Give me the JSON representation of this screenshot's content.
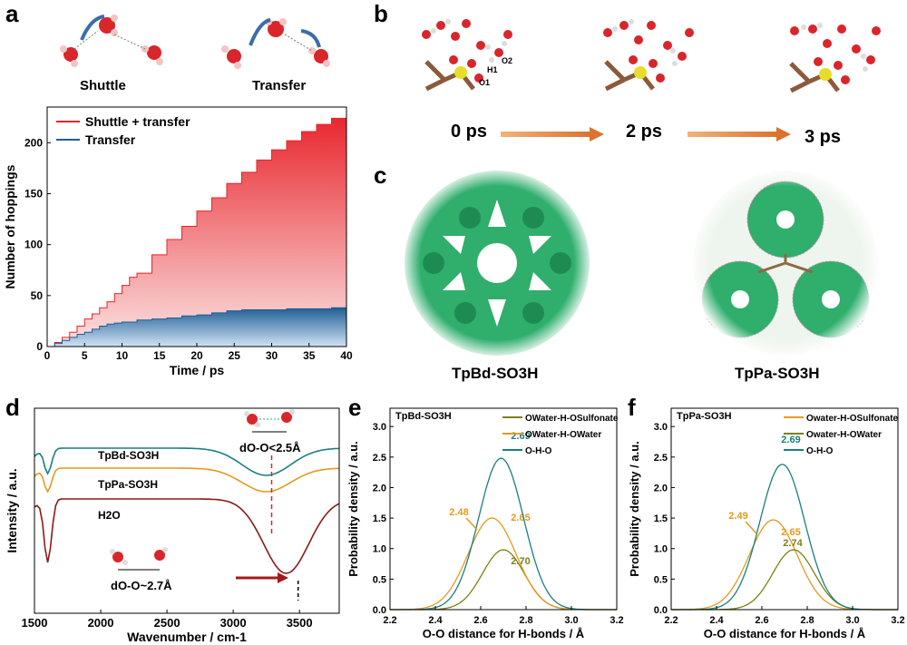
{
  "panels": {
    "a": {
      "label": "a",
      "schemes": [
        "Shuttle",
        "Transfer"
      ],
      "chart_data": {
        "type": "area",
        "xlabel": "Time / ps",
        "ylabel": "Number of hoppings",
        "xlim": [
          0,
          40
        ],
        "ylim": [
          0,
          235
        ],
        "xticks": [
          "0",
          "5",
          "10",
          "15",
          "20",
          "25",
          "30",
          "35",
          "40"
        ],
        "yticks": [
          "0",
          "50",
          "100",
          "150",
          "200"
        ],
        "x": [
          0,
          1,
          2,
          3,
          4,
          5,
          6,
          7,
          8,
          9,
          10,
          11,
          12,
          14,
          16,
          18,
          20,
          22,
          24,
          26,
          28,
          30,
          32,
          34,
          36,
          38,
          40
        ],
        "series": [
          {
            "name": "Shuttle + transfer",
            "color": "#e8242b",
            "values": [
              0,
              4,
              9,
              14,
              20,
              27,
              32,
              38,
              44,
              52,
              60,
              68,
              72,
              90,
              105,
              118,
              133,
              146,
              160,
              171,
              183,
              193,
              202,
              211,
              218,
              224,
              228
            ]
          },
          {
            "name": "Transfer",
            "color": "#1f5e94",
            "values": [
              0,
              3,
              6,
              9,
              12,
              14,
              17,
              20,
              22,
              23,
              24,
              24,
              26,
              27,
              28,
              30,
              31,
              33,
              35,
              36,
              36,
              36,
              37,
              37,
              37,
              38,
              38
            ]
          }
        ],
        "legend": "top-left"
      }
    },
    "b": {
      "label": "b",
      "times": [
        "0 ps",
        "2 ps",
        "3 ps"
      ],
      "atom_labels": [
        "H1",
        "O2",
        "O1"
      ]
    },
    "c": {
      "label": "c",
      "names": [
        "TpBd-SO3H",
        "TpPa-SO3H"
      ]
    },
    "d": {
      "label": "d",
      "chart_data": {
        "type": "line",
        "xlabel": "Wavenumber / cm-1",
        "ylabel": "Intensity / a.u.",
        "xlim": [
          1500,
          3800
        ],
        "xticks": [
          "1500",
          "2000",
          "2500",
          "3000",
          "3500"
        ],
        "series": [
          {
            "name": "TpBd-SO3H",
            "color": "#1a7f7f"
          },
          {
            "name": "TpPa-SO3H",
            "color": "#e39a1f"
          },
          {
            "name": "H2O",
            "color": "#8b1a1a"
          }
        ],
        "annotations": [
          "dO-O<2.5Å",
          "dO-O~2.7Å"
        ]
      }
    },
    "e": {
      "label": "e",
      "chart_data": {
        "type": "line",
        "title": "TpBd-SO3H",
        "xlabel": "O-O distance for H-bonds /  Å",
        "ylabel": "Probability density / a.u.",
        "xlim": [
          2.2,
          3.2
        ],
        "ylim": [
          0,
          3.3
        ],
        "xticks": [
          "2.2",
          "2.4",
          "2.6",
          "2.8",
          "3.0",
          "3.2"
        ],
        "yticks": [
          "0.0",
          "0.5",
          "1.0",
          "1.5",
          "2.0",
          "2.5",
          "3.0"
        ],
        "series": [
          {
            "name": "OWater-H-OSulfonate",
            "color": "#7f7f14",
            "peak_x": 2.7,
            "peak_y": 0.98,
            "peak_label": "2.70"
          },
          {
            "name": "OWater-H-OWater",
            "color": "#e39a1f",
            "peak_x": 2.65,
            "peak_y": 1.5,
            "peak_label": "2.65"
          },
          {
            "name": "O-H-O",
            "color": "#1a7f7f",
            "peak_x": 2.69,
            "peak_y": 2.48,
            "peak_label": "2.69"
          }
        ],
        "extra_label": "2.48"
      }
    },
    "f": {
      "label": "f",
      "chart_data": {
        "type": "line",
        "title": "TpPa-SO3H",
        "xlabel": "O-O distance for H-bonds /  Å",
        "ylabel": "Probability density / a.u.",
        "xlim": [
          2.2,
          3.2
        ],
        "ylim": [
          0,
          3.3
        ],
        "xticks": [
          "2.2",
          "2.4",
          "2.6",
          "2.8",
          "3.0",
          "3.2"
        ],
        "yticks": [
          "0.0",
          "0.5",
          "1.0",
          "1.5",
          "2.0",
          "2.5",
          "3.0"
        ],
        "series": [
          {
            "name": "Owater-H-OSulfonate",
            "color": "#e39a1f",
            "peak_x": 2.65,
            "peak_y": 1.47,
            "peak_label": "2.65"
          },
          {
            "name": "Owater-H-OWater",
            "color": "#7f7f14",
            "peak_x": 2.74,
            "peak_y": 0.98,
            "peak_label": "2.74"
          },
          {
            "name": "O-H-O",
            "color": "#1a7f7f",
            "peak_x": 2.69,
            "peak_y": 2.38,
            "peak_label": "2.69"
          }
        ],
        "extra_label": "2.49"
      }
    }
  }
}
